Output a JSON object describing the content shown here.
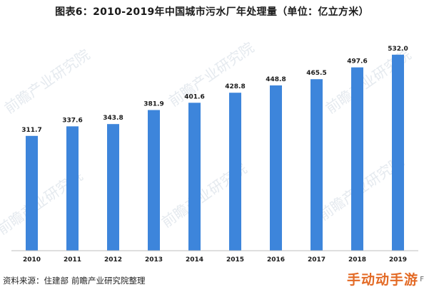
{
  "chart_data": {
    "type": "bar",
    "title": "图表6：2010-2019年中国城市污水厂年处理量（单位：亿立方米）",
    "categories": [
      "2010",
      "2011",
      "2012",
      "2013",
      "2014",
      "2015",
      "2016",
      "2017",
      "2018",
      "2019"
    ],
    "values": [
      311.7,
      337.6,
      343.8,
      381.9,
      401.6,
      428.8,
      448.8,
      465.5,
      497.6,
      532.0
    ],
    "value_labels": [
      "311.7",
      "337.6",
      "343.8",
      "381.9",
      "401.6",
      "428.8",
      "448.8",
      "465.5",
      "497.6",
      "532.0"
    ],
    "xlabel": "",
    "ylabel": "",
    "ylim": [
      0,
      580
    ],
    "grid": false,
    "legend": "none",
    "bar_color": "#3d85db"
  },
  "source": {
    "label": "资料来源：住建部",
    "org": "前瞻产业研究院整理"
  },
  "watermark": "前瞻产业研究院",
  "site_mark": "手动动手游",
  "edge_mark": "F"
}
